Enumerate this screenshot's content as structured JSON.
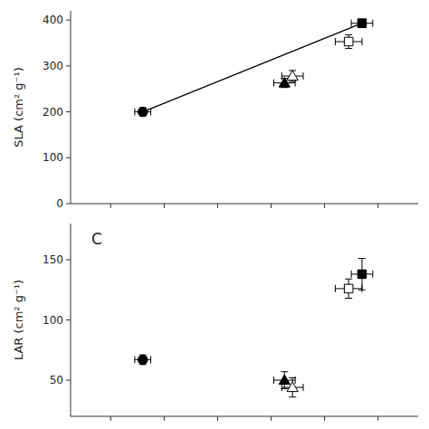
{
  "chart_data": [
    {
      "type": "scatter",
      "ylabel": "SLA (cm² g⁻¹)",
      "xlim": [
        0.025,
        0.155
      ],
      "xticks": [
        0.04,
        0.06,
        0.08,
        0.1,
        0.12,
        0.14
      ],
      "ylim": [
        0,
        420
      ],
      "yticks": [
        0,
        100,
        200,
        300,
        400
      ],
      "tick_labels": "y",
      "grid": false,
      "series": [
        {
          "marker": "filled-circle",
          "color": "#000000",
          "x": [
            0.052
          ],
          "values": [
            200
          ],
          "x_error": [
            0.003
          ],
          "y_error": [
            9
          ]
        },
        {
          "marker": "filled-triangle",
          "color": "#000000",
          "x": [
            0.105
          ],
          "values": [
            263
          ],
          "x_error": [
            0.004
          ],
          "y_error": [
            10
          ]
        },
        {
          "marker": "open-triangle",
          "color": "#000000",
          "x": [
            0.108
          ],
          "values": [
            278
          ],
          "x_error": [
            0.004
          ],
          "y_error": [
            12
          ]
        },
        {
          "marker": "open-square",
          "color": "#000000",
          "x": [
            0.129
          ],
          "values": [
            353
          ],
          "x_error": [
            0.005
          ],
          "y_error": [
            15
          ]
        },
        {
          "marker": "filled-square",
          "color": "#000000",
          "x": [
            0.134
          ],
          "values": [
            393
          ],
          "x_error": [
            0.004
          ],
          "y_error": [
            9
          ]
        },
        {
          "type": "line",
          "color": "#000000",
          "x": [
            0.052,
            0.134
          ],
          "values": [
            200,
            393
          ]
        }
      ]
    },
    {
      "type": "scatter",
      "ylabel": "LAR (cm² g⁻¹)",
      "annotation": "C",
      "xlim": [
        0.025,
        0.155
      ],
      "xticks": [
        0.04,
        0.06,
        0.08,
        0.1,
        0.12,
        0.14
      ],
      "ylim": [
        20,
        180
      ],
      "yticks": [
        50,
        100,
        150
      ],
      "tick_labels": "y",
      "grid": false,
      "series": [
        {
          "marker": "filled-circle",
          "color": "#000000",
          "x": [
            0.052
          ],
          "values": [
            67
          ],
          "x_error": [
            0.003
          ],
          "y_error": [
            4
          ]
        },
        {
          "marker": "filled-triangle",
          "color": "#000000",
          "x": [
            0.105
          ],
          "values": [
            50
          ],
          "x_error": [
            0.004
          ],
          "y_error": [
            7
          ]
        },
        {
          "marker": "open-triangle",
          "color": "#000000",
          "x": [
            0.108
          ],
          "values": [
            44
          ],
          "x_error": [
            0.004
          ],
          "y_error": [
            8
          ]
        },
        {
          "marker": "open-square",
          "color": "#000000",
          "x": [
            0.129
          ],
          "values": [
            126
          ],
          "x_error": [
            0.005
          ],
          "y_error": [
            8
          ]
        },
        {
          "marker": "filled-square",
          "color": "#000000",
          "x": [
            0.134
          ],
          "values": [
            138
          ],
          "x_error": [
            0.004
          ],
          "y_error": [
            13
          ]
        }
      ]
    }
  ]
}
